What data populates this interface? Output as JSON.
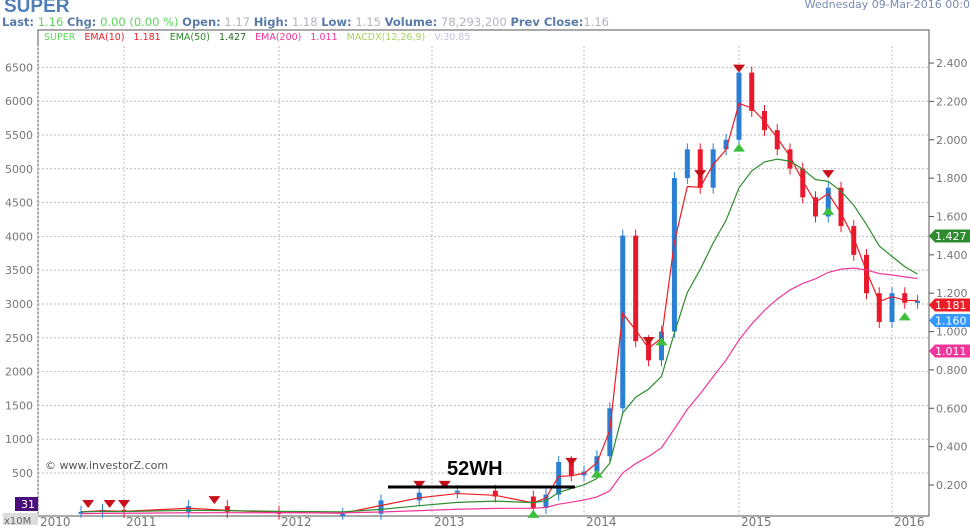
{
  "header": {
    "symbol": "SUPER",
    "date": "Wednesday 09-Mar-2016 00:0",
    "quote": {
      "last_label": "Last:",
      "last": "1.16",
      "chg_label": "Chg:",
      "chg": "0.00 (0.00 %)",
      "open_label": "Open:",
      "open": "1.17",
      "high_label": "High:",
      "high": "1.18",
      "low_label": "Low:",
      "low": "1.15",
      "volume_label": "Volume:",
      "volume": "78,293,200",
      "prev_label": "Prev Close:",
      "prev": "1.16"
    }
  },
  "legend": {
    "super": "SUPER",
    "ema10": "EMA(10)",
    "ema10_val": "1.181",
    "ema50": "EMA(50)",
    "ema50_val": "1.427",
    "ema200": "EMA(200)",
    "ema200_val": "1.011",
    "macd": "MACDX(12,26,9)",
    "v": "V:30.85"
  },
  "watermark": "© www.investorZ.com",
  "annotation": "52WH",
  "volume_badge": "31",
  "volume_unit": "x10M",
  "colors": {
    "up": "#2a7fd4",
    "down": "#e8192c",
    "ema10": "#ee1c25",
    "ema50": "#2e8b2e",
    "ema200": "#f0369a",
    "badge": "#4b0f7d"
  },
  "chart_data": {
    "type": "candlestick",
    "x_ticks": [
      "2010",
      "2011",
      "2012",
      "2013",
      "2014",
      "2015",
      "2016"
    ],
    "left_axis": {
      "ticks": [
        500,
        1000,
        1500,
        2000,
        2500,
        3000,
        3500,
        4000,
        4500,
        5000,
        5500,
        6000,
        6500
      ]
    },
    "right_axis": {
      "ticks": [
        "0.200",
        "0.400",
        "0.600",
        "0.800",
        "1.000",
        "1.200",
        "1.400",
        "1.600",
        "1.800",
        "2.000",
        "2.200",
        "2.400"
      ],
      "range": [
        0,
        2.5
      ]
    },
    "price_labels": [
      {
        "series": "EMA(50)",
        "value": "1.427"
      },
      {
        "series": "EMA(10)",
        "value": "1.181"
      },
      {
        "series": "SUPER",
        "value": "1.160"
      },
      {
        "series": "EMA(200)",
        "value": "1.011"
      }
    ],
    "closes": [
      [
        "2010-07",
        0.06
      ],
      [
        "2010-10",
        0.07
      ],
      [
        "2011-01",
        0.06
      ],
      [
        "2011-06",
        0.09
      ],
      [
        "2011-09",
        0.06
      ],
      [
        "2012-01",
        0.05
      ],
      [
        "2012-06",
        0.05
      ],
      [
        "2012-09",
        0.12
      ],
      [
        "2012-12",
        0.16
      ],
      [
        "2013-03",
        0.17
      ],
      [
        "2013-06",
        0.14
      ],
      [
        "2013-09",
        0.08
      ],
      [
        "2013-10",
        0.15
      ],
      [
        "2013-11",
        0.32
      ],
      [
        "2013-12",
        0.25
      ],
      [
        "2014-01",
        0.27
      ],
      [
        "2014-02",
        0.35
      ],
      [
        "2014-03",
        0.6
      ],
      [
        "2014-04",
        1.5
      ],
      [
        "2014-05",
        0.95
      ],
      [
        "2014-06",
        0.85
      ],
      [
        "2014-07",
        1.0
      ],
      [
        "2014-08",
        1.8
      ],
      [
        "2014-09",
        1.95
      ],
      [
        "2014-10",
        1.75
      ],
      [
        "2014-11",
        1.95
      ],
      [
        "2014-12",
        2.0
      ],
      [
        "2015-01",
        2.35
      ],
      [
        "2015-02",
        2.15
      ],
      [
        "2015-03",
        2.05
      ],
      [
        "2015-04",
        1.95
      ],
      [
        "2015-05",
        1.85
      ],
      [
        "2015-06",
        1.7
      ],
      [
        "2015-07",
        1.6
      ],
      [
        "2015-08",
        1.75
      ],
      [
        "2015-09",
        1.55
      ],
      [
        "2015-10",
        1.4
      ],
      [
        "2015-11",
        1.2
      ],
      [
        "2015-12",
        1.05
      ],
      [
        "2016-01",
        1.2
      ],
      [
        "2016-02",
        1.15
      ],
      [
        "2016-03",
        1.16
      ]
    ],
    "signals": [
      [
        "2010-08",
        "sell",
        0.08
      ],
      [
        "2010-11",
        "sell",
        0.08
      ],
      [
        "2011-01",
        "sell",
        0.08
      ],
      [
        "2011-08",
        "sell",
        0.1
      ],
      [
        "2012-12",
        "sell",
        0.18
      ],
      [
        "2013-02",
        "sell",
        0.18
      ],
      [
        "2013-09",
        "buy",
        0.07
      ],
      [
        "2013-12",
        "sell",
        0.3
      ],
      [
        "2014-02",
        "buy",
        0.28
      ],
      [
        "2014-06",
        "sell",
        0.93
      ],
      [
        "2014-07",
        "buy",
        0.97
      ],
      [
        "2014-10",
        "sell",
        1.8
      ],
      [
        "2015-01",
        "buy",
        1.98
      ],
      [
        "2015-01",
        "sell",
        2.35
      ],
      [
        "2015-08",
        "sell",
        1.8
      ],
      [
        "2015-08",
        "buy",
        1.65
      ],
      [
        "2016-02",
        "buy",
        1.1
      ]
    ],
    "ema_current": {
      "EMA(10)": 1.181,
      "EMA(50)": 1.427,
      "EMA(200)": 1.011
    },
    "grid": true
  }
}
